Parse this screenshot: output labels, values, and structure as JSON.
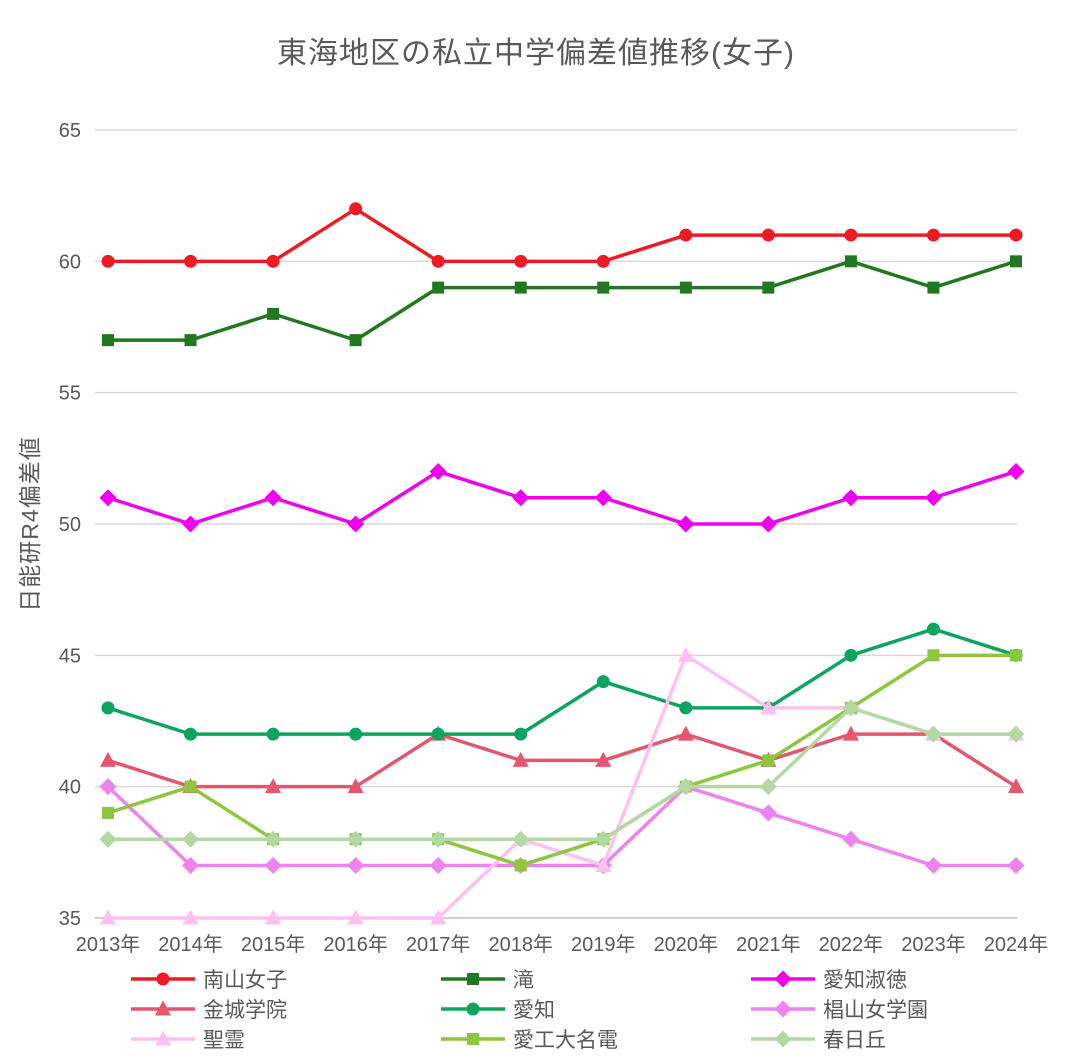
{
  "title": "東海地区の私立中学偏差値推移(女子)",
  "chart_data": {
    "type": "line",
    "title": "東海地区の私立中学偏差値推移(女子)",
    "xlabel": "",
    "ylabel": "日能研R4偏差値",
    "ylim": [
      35,
      65
    ],
    "yticks": [
      35,
      40,
      45,
      50,
      55,
      60,
      65
    ],
    "grid": true,
    "legend_position": "bottom",
    "categories": [
      "2013年",
      "2014年",
      "2015年",
      "2016年",
      "2017年",
      "2018年",
      "2019年",
      "2020年",
      "2021年",
      "2022年",
      "2023年",
      "2024年"
    ],
    "series": [
      {
        "name": "南山女子",
        "color": "#ed1c24",
        "marker": "circle",
        "values": [
          60,
          60,
          60,
          62,
          60,
          60,
          60,
          61,
          61,
          61,
          61,
          61
        ]
      },
      {
        "name": "滝",
        "color": "#217821",
        "marker": "square",
        "values": [
          57,
          57,
          58,
          57,
          59,
          59,
          59,
          59,
          59,
          60,
          59,
          60
        ]
      },
      {
        "name": "愛知淑徳",
        "color": "#ee00ee",
        "marker": "diamond",
        "values": [
          51,
          50,
          51,
          50,
          52,
          51,
          51,
          50,
          50,
          51,
          51,
          52
        ]
      },
      {
        "name": "金城学院",
        "color": "#e4566e",
        "marker": "triangle",
        "values": [
          41,
          40,
          40,
          40,
          42,
          41,
          41,
          42,
          41,
          42,
          42,
          40
        ]
      },
      {
        "name": "愛知",
        "color": "#0ba55d",
        "marker": "circle",
        "values": [
          43,
          42,
          42,
          42,
          42,
          42,
          44,
          43,
          43,
          45,
          46,
          45
        ]
      },
      {
        "name": "椙山女学園",
        "color": "#ee82ee",
        "marker": "diamond",
        "values": [
          40,
          37,
          37,
          37,
          37,
          37,
          37,
          40,
          39,
          38,
          37,
          37
        ]
      },
      {
        "name": "聖霊",
        "color": "#ffc0ef",
        "marker": "triangle",
        "values": [
          35,
          35,
          35,
          35,
          35,
          38,
          37,
          45,
          43,
          43,
          42,
          42
        ]
      },
      {
        "name": "愛工大名電",
        "color": "#8dc63f",
        "marker": "square",
        "values": [
          39,
          40,
          38,
          38,
          38,
          37,
          38,
          40,
          41,
          43,
          45,
          45
        ]
      },
      {
        "name": "春日丘",
        "color": "#b4d8a4",
        "marker": "diamond",
        "values": [
          38,
          38,
          38,
          38,
          38,
          38,
          38,
          40,
          40,
          43,
          42,
          42
        ]
      }
    ]
  }
}
